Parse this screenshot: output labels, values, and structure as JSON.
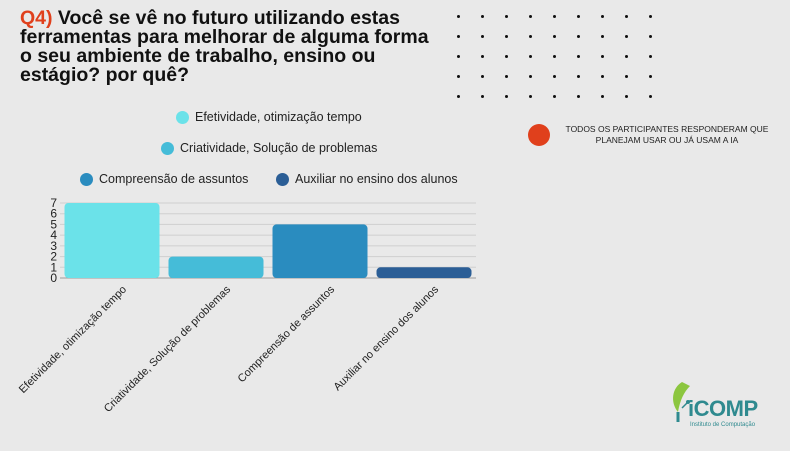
{
  "title": {
    "prefix": "Q4)",
    "text": " Você se vê no futuro utilizando estas ferramentas para melhorar de alguma forma o seu ambiente de trabalho, ensino ou estágio? por quê?"
  },
  "note": {
    "text": "TODOS OS PARTICIPANTES RESPONDERAM QUE PLANEJAM USAR OU JÁ USAM A IA",
    "color": "#e0401c"
  },
  "logo": {
    "word": "iCOMP",
    "subtitle": "Instituto de Computação"
  },
  "chart_data": {
    "type": "bar",
    "categories": [
      "Efetividade, otimização tempo",
      "Criatividade, Solução de problemas",
      "Compreensão de assuntos",
      "Auxiliar no ensino dos alunos"
    ],
    "values": [
      7,
      2,
      5,
      1
    ],
    "colors": [
      "#6be2e9",
      "#45bcd8",
      "#2a8cbf",
      "#2b5e96"
    ],
    "legend": [
      {
        "label": "Efetividade, otimização tempo",
        "color": "#6be2e9"
      },
      {
        "label": "Criatividade, Solução de problemas",
        "color": "#45bcd8"
      },
      {
        "label": "Compreensão de assuntos",
        "color": "#2a8cbf"
      },
      {
        "label": "Auxiliar no ensino dos alunos",
        "color": "#2b5e96"
      }
    ],
    "yticks": [
      0,
      1,
      2,
      3,
      4,
      5,
      6,
      7
    ],
    "ylim": [
      0,
      7
    ],
    "grid": true,
    "legend_position": "top"
  }
}
